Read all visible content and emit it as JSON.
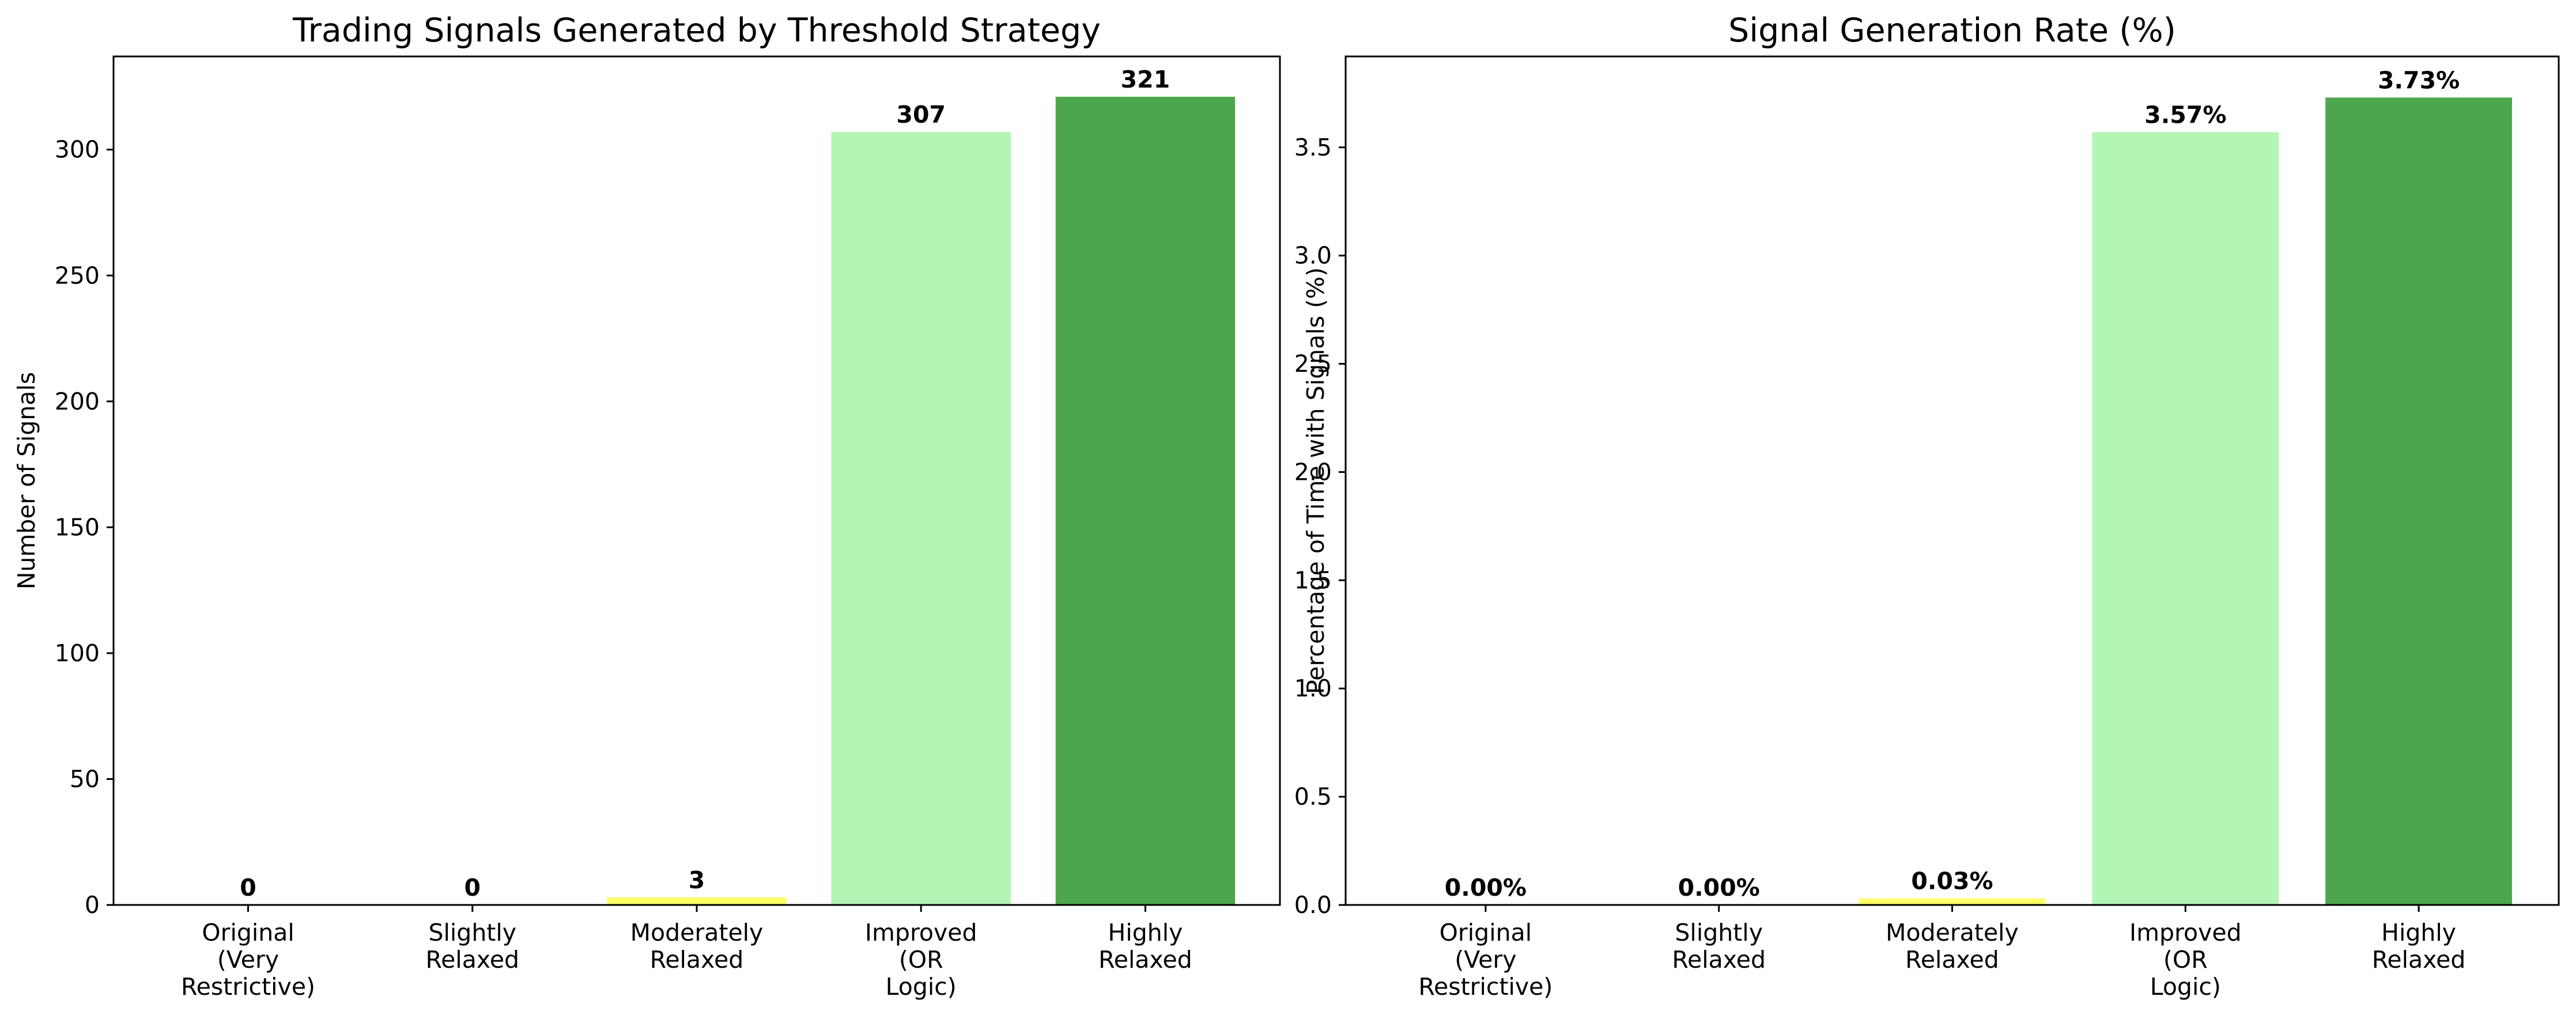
{
  "chart_data": [
    {
      "type": "bar",
      "title": "Trading Signals Generated by Threshold Strategy",
      "xlabel": "",
      "ylabel": "Number of Signals",
      "categories": [
        [
          "Original",
          "(Very",
          "Restrictive)"
        ],
        [
          "Slightly",
          "Relaxed"
        ],
        [
          "Moderately",
          "Relaxed"
        ],
        [
          "Improved",
          "(OR",
          "Logic)"
        ],
        [
          "Highly",
          "Relaxed"
        ]
      ],
      "values": [
        0,
        0,
        3,
        307,
        321
      ],
      "value_labels": [
        "0",
        "0",
        "3",
        "307",
        "321"
      ],
      "colors": [
        "#ff9999",
        "#ffcc99",
        "#ffff66",
        "#b3f5b3",
        "#4ca64c"
      ],
      "ylim": [
        0,
        337
      ],
      "yticks": [
        0,
        50,
        100,
        150,
        200,
        250,
        300
      ],
      "ytick_labels": [
        "0",
        "50",
        "100",
        "150",
        "200",
        "250",
        "300"
      ],
      "grid": false
    },
    {
      "type": "bar",
      "title": "Signal Generation Rate (%)",
      "xlabel": "",
      "ylabel": "Percentage of Time with Signals (%)",
      "categories": [
        [
          "Original",
          "(Very",
          "Restrictive)"
        ],
        [
          "Slightly",
          "Relaxed"
        ],
        [
          "Moderately",
          "Relaxed"
        ],
        [
          "Improved",
          "(OR",
          "Logic)"
        ],
        [
          "Highly",
          "Relaxed"
        ]
      ],
      "values": [
        0.0,
        0.0,
        0.03,
        3.57,
        3.73
      ],
      "value_labels": [
        "0.00%",
        "0.00%",
        "0.03%",
        "3.57%",
        "3.73%"
      ],
      "colors": [
        "#ff9999",
        "#ffcc99",
        "#ffff66",
        "#b3f5b3",
        "#4ca64c"
      ],
      "ylim": [
        0,
        3.92
      ],
      "yticks": [
        0.0,
        0.5,
        1.0,
        1.5,
        2.0,
        2.5,
        3.0,
        3.5
      ],
      "ytick_labels": [
        "0.0",
        "0.5",
        "1.0",
        "1.5",
        "2.0",
        "2.5",
        "3.0",
        "3.5"
      ],
      "grid": false
    }
  ]
}
